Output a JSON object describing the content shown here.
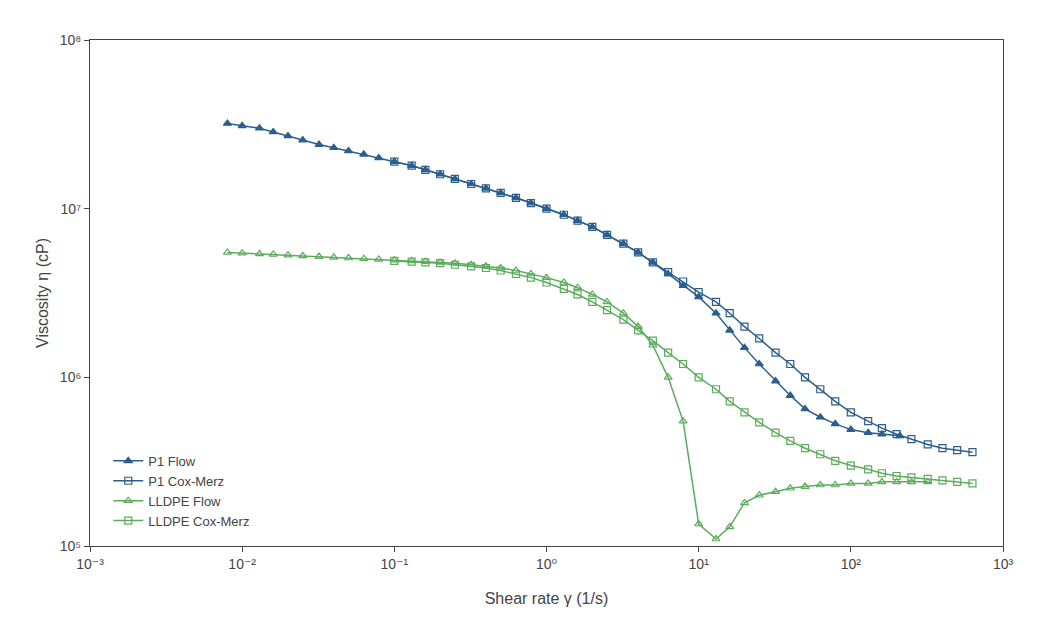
{
  "chart_data": {
    "type": "line",
    "xlabel": "Shear rate γ (1/s)",
    "ylabel": "Viscosity η (cP)",
    "log": true,
    "grid": false,
    "legend": "lower left",
    "xlim": [
      0.001,
      1000
    ],
    "ylim": [
      100000,
      100000000
    ],
    "xticks": [
      {
        "value": 0.001,
        "label": "10⁻³"
      },
      {
        "value": 0.01,
        "label": "10⁻²"
      },
      {
        "value": 0.1,
        "label": "10⁻¹"
      },
      {
        "value": 1,
        "label": "10⁰"
      },
      {
        "value": 10,
        "label": "10¹"
      },
      {
        "value": 100,
        "label": "10²"
      },
      {
        "value": 1000,
        "label": "10³"
      }
    ],
    "yticks": [
      {
        "value": 100000,
        "label": "10⁵"
      },
      {
        "value": 1000000,
        "label": "10⁶"
      },
      {
        "value": 10000000,
        "label": "10⁷"
      },
      {
        "value": 100000000,
        "label": "10⁸"
      }
    ],
    "series": [
      {
        "name": "P1 Flow",
        "color": "#2A5F8F",
        "marker": "triangle-up",
        "line_style": "solid",
        "x": [
          0.008,
          0.01,
          0.013,
          0.016,
          0.02,
          0.025,
          0.032,
          0.04,
          0.05,
          0.063,
          0.079,
          0.1,
          0.13,
          0.16,
          0.2,
          0.25,
          0.32,
          0.4,
          0.5,
          0.63,
          0.79,
          1.0,
          1.3,
          1.6,
          2.0,
          2.5,
          3.2,
          4.0,
          5.0,
          6.3,
          7.9,
          10,
          13,
          16,
          20,
          25,
          32,
          40,
          50,
          63,
          79,
          100,
          130,
          160,
          210
        ],
        "values": [
          32000000.0,
          31000000.0,
          30000000.0,
          28500000.0,
          27000000.0,
          25500000.0,
          24000000.0,
          23000000.0,
          22000000.0,
          21000000.0,
          20000000.0,
          19000000.0,
          18000000.0,
          17000000.0,
          16000000.0,
          15000000.0,
          14000000.0,
          13200000.0,
          12400000.0,
          11600000.0,
          10800000.0,
          10000000.0,
          9200000.0,
          8500000.0,
          7800000.0,
          7000000.0,
          6200000.0,
          5500000.0,
          4800000.0,
          4100000.0,
          3500000.0,
          3000000.0,
          2400000.0,
          1900000.0,
          1500000.0,
          1200000.0,
          950000.0,
          780000.0,
          650000.0,
          580000.0,
          530000.0,
          490000.0,
          470000.0,
          460000.0,
          450000.0
        ]
      },
      {
        "name": "P1 Cox-Merz",
        "color": "#2A5F8F",
        "marker": "square-open",
        "line_style": "solid",
        "x": [
          0.1,
          0.13,
          0.16,
          0.2,
          0.25,
          0.32,
          0.4,
          0.5,
          0.63,
          0.79,
          1.0,
          1.3,
          1.6,
          2.0,
          2.5,
          3.2,
          4.0,
          5.0,
          6.3,
          7.9,
          10,
          13,
          16,
          20,
          25,
          32,
          40,
          50,
          63,
          79,
          100,
          130,
          160,
          200,
          250,
          320,
          400,
          500,
          630
        ],
        "values": [
          19000000.0,
          18000000.0,
          17000000.0,
          16000000.0,
          15000000.0,
          14000000.0,
          13200000.0,
          12400000.0,
          11600000.0,
          10800000.0,
          10000000.0,
          9200000.0,
          8500000.0,
          7800000.0,
          7000000.0,
          6200000.0,
          5500000.0,
          4800000.0,
          4200000.0,
          3700000.0,
          3200000.0,
          2800000.0,
          2400000.0,
          2000000.0,
          1700000.0,
          1400000.0,
          1200000.0,
          1000000.0,
          850000.0,
          720000.0,
          620000.0,
          550000.0,
          500000.0,
          460000.0,
          430000.0,
          400000.0,
          380000.0,
          370000.0,
          360000.0
        ]
      },
      {
        "name": "LLDPE Flow",
        "color": "#5BAD5B",
        "marker": "triangle-up-open",
        "line_style": "solid",
        "x": [
          0.008,
          0.01,
          0.013,
          0.016,
          0.02,
          0.025,
          0.032,
          0.04,
          0.05,
          0.063,
          0.079,
          0.1,
          0.13,
          0.16,
          0.2,
          0.25,
          0.32,
          0.4,
          0.5,
          0.63,
          0.79,
          1.0,
          1.3,
          1.6,
          2.0,
          2.5,
          3.2,
          4.0,
          5.0,
          6.3,
          7.9,
          10,
          13,
          16,
          20,
          25,
          32,
          40,
          50,
          63,
          79,
          100,
          130,
          160,
          200,
          250,
          320
        ],
        "values": [
          5500000.0,
          5450000.0,
          5400000.0,
          5350000.0,
          5300000.0,
          5250000.0,
          5200000.0,
          5150000.0,
          5100000.0,
          5050000.0,
          5000000.0,
          4950000.0,
          4900000.0,
          4850000.0,
          4800000.0,
          4750000.0,
          4650000.0,
          4550000.0,
          4450000.0,
          4300000.0,
          4100000.0,
          3900000.0,
          3650000.0,
          3400000.0,
          3100000.0,
          2800000.0,
          2400000.0,
          2000000.0,
          1550000.0,
          1000000.0,
          550000.0,
          135000.0,
          110000.0,
          130000.0,
          180000.0,
          200000.0,
          210000.0,
          220000.0,
          225000.0,
          230000.0,
          230000.0,
          235000.0,
          235000.0,
          240000.0,
          240000.0,
          240000.0,
          240000.0
        ]
      },
      {
        "name": "LLDPE Cox-Merz",
        "color": "#5BAD5B",
        "marker": "square-open",
        "line_style": "solid",
        "x": [
          0.1,
          0.13,
          0.16,
          0.2,
          0.25,
          0.32,
          0.4,
          0.5,
          0.63,
          0.79,
          1.0,
          1.3,
          1.6,
          2.0,
          2.5,
          3.2,
          4.0,
          5.0,
          6.3,
          7.9,
          10,
          13,
          16,
          20,
          25,
          32,
          40,
          50,
          63,
          79,
          100,
          130,
          160,
          200,
          250,
          320,
          400,
          500,
          630
        ],
        "values": [
          4900000.0,
          4850000.0,
          4800000.0,
          4750000.0,
          4650000.0,
          4550000.0,
          4450000.0,
          4300000.0,
          4100000.0,
          3900000.0,
          3650000.0,
          3350000.0,
          3100000.0,
          2800000.0,
          2500000.0,
          2200000.0,
          1900000.0,
          1650000.0,
          1400000.0,
          1200000.0,
          1000000.0,
          850000.0,
          720000.0,
          620000.0,
          540000.0,
          470000.0,
          420000.0,
          380000.0,
          350000.0,
          320000.0,
          300000.0,
          285000.0,
          270000.0,
          260000.0,
          255000.0,
          250000.0,
          245000.0,
          240000.0,
          235000.0
        ]
      }
    ]
  }
}
